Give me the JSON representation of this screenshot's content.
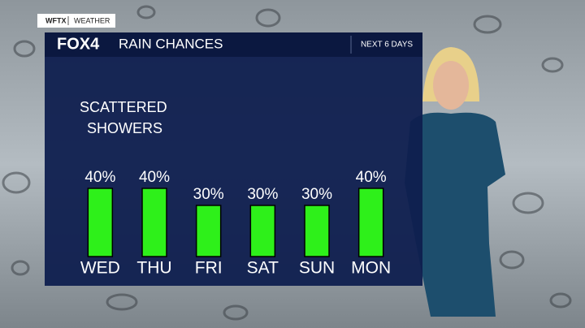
{
  "brand": {
    "station": "WFTX",
    "section": "WEATHER",
    "logo": "FOX4"
  },
  "chart_data": {
    "type": "bar",
    "title": "RAIN CHANCES",
    "subtitle": "NEXT 6 DAYS",
    "annotation": [
      "SCATTERED",
      "SHOWERS"
    ],
    "categories": [
      "WED",
      "THU",
      "FRI",
      "SAT",
      "SUN",
      "MON"
    ],
    "values": [
      40,
      40,
      30,
      30,
      30,
      40
    ],
    "value_labels": [
      "40%",
      "40%",
      "30%",
      "30%",
      "30%",
      "40%"
    ],
    "color": "#2ef01a"
  }
}
